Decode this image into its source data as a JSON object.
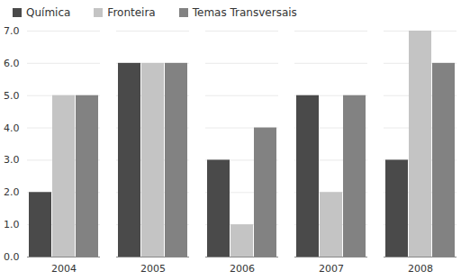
{
  "chart_data": {
    "type": "bar",
    "categories": [
      "2004",
      "2005",
      "2006",
      "2007",
      "2008"
    ],
    "series": [
      {
        "name": "Química",
        "color": "#4a4a4a",
        "values": [
          2,
          6,
          3,
          5,
          3
        ]
      },
      {
        "name": "Fronteira",
        "color": "#c4c4c4",
        "values": [
          5,
          6,
          1,
          2,
          7
        ]
      },
      {
        "name": "Temas Transversais",
        "color": "#828282",
        "values": [
          5,
          6,
          4,
          5,
          6
        ]
      }
    ],
    "ylim": [
      0,
      7
    ],
    "yticks": [
      0,
      1,
      2,
      3,
      4,
      5,
      6,
      7
    ],
    "grid": true,
    "legend": "top"
  }
}
